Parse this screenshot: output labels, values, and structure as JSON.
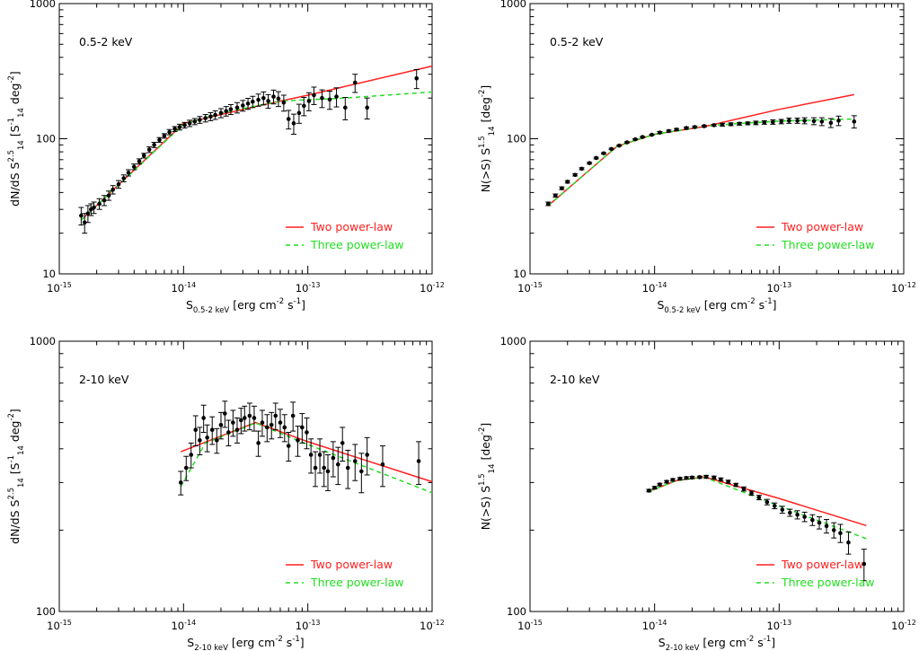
{
  "colors": {
    "two_power_law": "#ff2020",
    "three_power_law": "#22dd22",
    "points": "#000000"
  },
  "legend": {
    "two": "Two power-law",
    "three": "Three power-law"
  },
  "chart_data": [
    {
      "type": "scatter",
      "panel_label": "0.5-2 keV",
      "xlabel": {
        "main": "S",
        "sub": "0.5-2 keV",
        "rest": " [erg cm",
        "exp1": "-2",
        "mid": " s",
        "exp2": "-1",
        "end": "]"
      },
      "ylabel": {
        "main": "dN/dS S",
        "sup": "2.5",
        "sub": "14",
        "rest": " [S",
        "sub2": "14",
        "sup2": "-1",
        "mid": " deg",
        "exp": "-2",
        "end": "]"
      },
      "xscale": "log",
      "yscale": "log",
      "xlim": [
        1e-15,
        1e-12
      ],
      "ylim": [
        10,
        1000
      ],
      "x_ticks": [
        "10^-15",
        "10^-14",
        "10^-13",
        "10^-12"
      ],
      "y_ticks": [
        "10",
        "100",
        "1000"
      ],
      "legend_position": "bottom-right",
      "points": [
        [
          1.5e-15,
          27,
          4
        ],
        [
          1.6e-15,
          24,
          4
        ],
        [
          1.7e-15,
          28,
          4
        ],
        [
          1.8e-15,
          30,
          3
        ],
        [
          1.9e-15,
          31,
          3
        ],
        [
          2.1e-15,
          33,
          3
        ],
        [
          2.3e-15,
          35,
          3
        ],
        [
          2.5e-15,
          38,
          3
        ],
        [
          2.7e-15,
          42,
          3
        ],
        [
          3e-15,
          46,
          3
        ],
        [
          3.3e-15,
          51,
          3
        ],
        [
          3.6e-15,
          56,
          3
        ],
        [
          4e-15,
          62,
          3
        ],
        [
          4.4e-15,
          68,
          3
        ],
        [
          4.8e-15,
          75,
          3
        ],
        [
          5.3e-15,
          83,
          4
        ],
        [
          5.8e-15,
          90,
          4
        ],
        [
          6.4e-15,
          98,
          4
        ],
        [
          7e-15,
          105,
          4
        ],
        [
          7.7e-15,
          112,
          5
        ],
        [
          8.5e-15,
          118,
          5
        ],
        [
          9.3e-15,
          122,
          6
        ],
        [
          1.02e-14,
          126,
          6
        ],
        [
          1.12e-14,
          130,
          7
        ],
        [
          1.23e-14,
          134,
          7
        ],
        [
          1.35e-14,
          138,
          8
        ],
        [
          1.5e-14,
          142,
          9
        ],
        [
          1.65e-14,
          146,
          10
        ],
        [
          1.8e-14,
          150,
          11
        ],
        [
          2e-14,
          155,
          12
        ],
        [
          2.2e-14,
          160,
          13
        ],
        [
          2.4e-14,
          165,
          14
        ],
        [
          2.7e-14,
          170,
          15
        ],
        [
          3e-14,
          176,
          16
        ],
        [
          3.3e-14,
          182,
          17
        ],
        [
          3.6e-14,
          188,
          18
        ],
        [
          4e-14,
          194,
          20
        ],
        [
          4.4e-14,
          200,
          22
        ],
        [
          4.8e-14,
          190,
          22
        ],
        [
          5.3e-14,
          205,
          24
        ],
        [
          5.8e-14,
          198,
          25
        ],
        [
          6.4e-14,
          185,
          25
        ],
        [
          7e-14,
          140,
          22
        ],
        [
          7.7e-14,
          130,
          22
        ],
        [
          8.5e-14,
          155,
          25
        ],
        [
          9.3e-14,
          175,
          27
        ],
        [
          1.02e-13,
          190,
          29
        ],
        [
          1.12e-13,
          210,
          31
        ],
        [
          1.3e-13,
          200,
          30
        ],
        [
          1.5e-13,
          195,
          30
        ],
        [
          1.7e-13,
          205,
          33
        ],
        [
          2e-13,
          170,
          32
        ],
        [
          2.4e-13,
          260,
          40
        ],
        [
          3e-13,
          170,
          30
        ],
        [
          7.5e-13,
          280,
          45
        ]
      ],
      "two_power_law": [
        [
          1.5e-15,
          25
        ],
        [
          1e-14,
          130
        ],
        [
          4e-14,
          175
        ],
        [
          1e-13,
          210
        ],
        [
          1e-12,
          345
        ]
      ],
      "three_power_law": [
        [
          1.5e-15,
          25
        ],
        [
          1e-14,
          128
        ],
        [
          2e-14,
          155
        ],
        [
          6e-14,
          190
        ],
        [
          2e-13,
          200
        ],
        [
          1e-12,
          222
        ]
      ]
    },
    {
      "type": "scatter",
      "panel_label": "0.5-2 keV",
      "xlabel": {
        "main": "S",
        "sub": "0.5-2 keV",
        "rest": " [erg cm",
        "exp1": "-2",
        "mid": " s",
        "exp2": "-1",
        "end": "]"
      },
      "ylabel": {
        "main": "N(>S) S",
        "sup": "1.5",
        "sub": "14",
        "rest": " [deg",
        "exp": "-2",
        "end": "]"
      },
      "xscale": "log",
      "yscale": "log",
      "xlim": [
        1e-15,
        1e-12
      ],
      "ylim": [
        10,
        1000
      ],
      "x_ticks": [
        "10^-15",
        "10^-14",
        "10^-13",
        "10^-12"
      ],
      "y_ticks": [
        "10",
        "100",
        "1000"
      ],
      "legend_position": "bottom-right",
      "points": [
        [
          1.4e-15,
          33,
          1
        ],
        [
          1.6e-15,
          38,
          1
        ],
        [
          1.8e-15,
          43,
          1
        ],
        [
          2e-15,
          48,
          1
        ],
        [
          2.3e-15,
          54,
          1
        ],
        [
          2.6e-15,
          60,
          1
        ],
        [
          3e-15,
          66,
          1
        ],
        [
          3.4e-15,
          72,
          1
        ],
        [
          3.9e-15,
          78,
          1
        ],
        [
          4.5e-15,
          84,
          1
        ],
        [
          5.2e-15,
          89,
          1
        ],
        [
          6e-15,
          94,
          1
        ],
        [
          7e-15,
          99,
          1
        ],
        [
          8e-15,
          103,
          1
        ],
        [
          9.5e-15,
          107,
          1
        ],
        [
          1.1e-14,
          111,
          2
        ],
        [
          1.3e-14,
          114,
          2
        ],
        [
          1.5e-14,
          117,
          2
        ],
        [
          1.8e-14,
          120,
          2
        ],
        [
          2.1e-14,
          122,
          2
        ],
        [
          2.5e-14,
          124,
          2
        ],
        [
          3e-14,
          126,
          2
        ],
        [
          3.5e-14,
          127,
          3
        ],
        [
          4.1e-14,
          128,
          3
        ],
        [
          4.8e-14,
          129,
          3
        ],
        [
          5.6e-14,
          130,
          3
        ],
        [
          6.5e-14,
          131,
          4
        ],
        [
          7.6e-14,
          132,
          4
        ],
        [
          8.9e-14,
          133,
          5
        ],
        [
          1.04e-13,
          134,
          5
        ],
        [
          1.2e-13,
          136,
          6
        ],
        [
          1.4e-13,
          136,
          6
        ],
        [
          1.6e-13,
          136,
          7
        ],
        [
          1.9e-13,
          135,
          8
        ],
        [
          2.2e-13,
          134,
          9
        ],
        [
          2.6e-13,
          131,
          10
        ],
        [
          3e-13,
          136,
          11
        ],
        [
          4e-13,
          134,
          14
        ]
      ],
      "two_power_law": [
        [
          1.4e-15,
          32
        ],
        [
          5e-15,
          88
        ],
        [
          1e-14,
          108
        ],
        [
          2.5e-14,
          123
        ],
        [
          1e-13,
          165
        ],
        [
          4e-13,
          212
        ]
      ],
      "three_power_law": [
        [
          1.4e-15,
          32
        ],
        [
          5e-15,
          88
        ],
        [
          1e-14,
          108
        ],
        [
          3e-14,
          126
        ],
        [
          1e-13,
          135
        ],
        [
          4e-13,
          140
        ]
      ]
    },
    {
      "type": "scatter",
      "panel_label": "2-10 keV",
      "xlabel": {
        "main": "S",
        "sub": "2-10 keV",
        "rest": " [erg cm",
        "exp1": "-2",
        "mid": " s",
        "exp2": "-1",
        "end": "]"
      },
      "ylabel": {
        "main": "dN/dS S",
        "sup": "2.5",
        "sub": "14",
        "rest": " [S",
        "sub2": "14",
        "sup2": "-1",
        "mid": " deg",
        "exp": "-2",
        "end": "]"
      },
      "xscale": "log",
      "yscale": "log",
      "xlim": [
        1e-15,
        1e-12
      ],
      "ylim": [
        100,
        1000
      ],
      "x_ticks": [
        "10^-15",
        "10^-14",
        "10^-13",
        "10^-12"
      ],
      "y_ticks": [
        "100",
        "1000"
      ],
      "legend_position": "bottom-right",
      "points": [
        [
          9.5e-15,
          300,
          30
        ],
        [
          1.05e-14,
          340,
          35
        ],
        [
          1.15e-14,
          380,
          40
        ],
        [
          1.25e-14,
          470,
          60
        ],
        [
          1.35e-14,
          430,
          50
        ],
        [
          1.45e-14,
          520,
          60
        ],
        [
          1.55e-14,
          440,
          50
        ],
        [
          1.7e-14,
          470,
          55
        ],
        [
          1.85e-14,
          430,
          45
        ],
        [
          2e-14,
          490,
          55
        ],
        [
          2.15e-14,
          540,
          60
        ],
        [
          2.3e-14,
          460,
          50
        ],
        [
          2.5e-14,
          500,
          55
        ],
        [
          2.7e-14,
          470,
          50
        ],
        [
          2.9e-14,
          510,
          55
        ],
        [
          3.1e-14,
          520,
          55
        ],
        [
          3.4e-14,
          530,
          60
        ],
        [
          3.7e-14,
          520,
          55
        ],
        [
          4e-14,
          420,
          45
        ],
        [
          4.3e-14,
          500,
          55
        ],
        [
          4.7e-14,
          480,
          55
        ],
        [
          5.1e-14,
          490,
          55
        ],
        [
          5.5e-14,
          530,
          60
        ],
        [
          6e-14,
          500,
          60
        ],
        [
          6.5e-14,
          480,
          55
        ],
        [
          7e-14,
          410,
          50
        ],
        [
          7.6e-14,
          530,
          65
        ],
        [
          8.3e-14,
          430,
          55
        ],
        [
          9e-14,
          480,
          60
        ],
        [
          9.8e-14,
          460,
          60
        ],
        [
          1.06e-13,
          380,
          55
        ],
        [
          1.15e-13,
          340,
          50
        ],
        [
          1.25e-13,
          380,
          55
        ],
        [
          1.35e-13,
          340,
          50
        ],
        [
          1.45e-13,
          330,
          50
        ],
        [
          1.6e-13,
          370,
          55
        ],
        [
          1.75e-13,
          350,
          55
        ],
        [
          1.9e-13,
          420,
          60
        ],
        [
          2.1e-13,
          340,
          55
        ],
        [
          2.4e-13,
          360,
          55
        ],
        [
          2.7e-13,
          330,
          55
        ],
        [
          3e-13,
          380,
          60
        ],
        [
          4e-13,
          350,
          60
        ],
        [
          7.8e-13,
          360,
          65
        ]
      ],
      "two_power_law": [
        [
          9.5e-15,
          390
        ],
        [
          3.8e-14,
          500
        ],
        [
          1e-13,
          425
        ],
        [
          1e-12,
          302
        ]
      ],
      "three_power_law": [
        [
          9.5e-15,
          290
        ],
        [
          1.5e-14,
          420
        ],
        [
          3.8e-14,
          498
        ],
        [
          1e-13,
          415
        ],
        [
          1e-12,
          275
        ]
      ]
    },
    {
      "type": "scatter",
      "panel_label": "2-10 keV",
      "xlabel": {
        "main": "S",
        "sub": "2-10 keV",
        "rest": " [erg cm",
        "exp1": "-2",
        "mid": " s",
        "exp2": "-1",
        "end": "]"
      },
      "ylabel": {
        "main": "N(>S) S",
        "sup": "1.5",
        "sub": "14",
        "rest": " [deg",
        "exp": "-2",
        "end": "]"
      },
      "xscale": "log",
      "yscale": "log",
      "xlim": [
        1e-15,
        1e-12
      ],
      "ylim": [
        100,
        1000
      ],
      "x_ticks": [
        "10^-15",
        "10^-14",
        "10^-13",
        "10^-12"
      ],
      "y_ticks": [
        "100",
        "1000"
      ],
      "legend_position": "bottom-right",
      "points": [
        [
          9e-15,
          280,
          3
        ],
        [
          1e-14,
          287,
          3
        ],
        [
          1.1e-14,
          295,
          3
        ],
        [
          1.25e-14,
          302,
          3
        ],
        [
          1.4e-14,
          307,
          3
        ],
        [
          1.6e-14,
          310,
          3
        ],
        [
          1.8e-14,
          312,
          3
        ],
        [
          2e-14,
          313,
          3
        ],
        [
          2.3e-14,
          314,
          3
        ],
        [
          2.6e-14,
          315,
          4
        ],
        [
          3e-14,
          313,
          4
        ],
        [
          3.4e-14,
          308,
          4
        ],
        [
          3.9e-14,
          302,
          4
        ],
        [
          4.5e-14,
          294,
          4
        ],
        [
          5.2e-14,
          284,
          5
        ],
        [
          6e-14,
          274,
          5
        ],
        [
          6.9e-14,
          264,
          5
        ],
        [
          8e-14,
          254,
          6
        ],
        [
          9.2e-14,
          246,
          6
        ],
        [
          1.06e-13,
          238,
          7
        ],
        [
          1.22e-13,
          232,
          7
        ],
        [
          1.4e-13,
          228,
          8
        ],
        [
          1.6e-13,
          224,
          9
        ],
        [
          1.85e-13,
          218,
          10
        ],
        [
          2.1e-13,
          213,
          11
        ],
        [
          2.4e-13,
          207,
          12
        ],
        [
          2.75e-13,
          200,
          13
        ],
        [
          3.1e-13,
          195,
          15
        ],
        [
          3.6e-13,
          180,
          17
        ],
        [
          4.8e-13,
          150,
          20
        ]
      ],
      "two_power_law": [
        [
          9e-15,
          278
        ],
        [
          1.5e-14,
          305
        ],
        [
          2.5e-14,
          315
        ],
        [
          1e-13,
          262
        ],
        [
          5e-13,
          208
        ]
      ],
      "three_power_law": [
        [
          9e-15,
          278
        ],
        [
          1.5e-14,
          305
        ],
        [
          2.5e-14,
          314
        ],
        [
          1e-13,
          246
        ],
        [
          5e-13,
          186
        ]
      ]
    }
  ]
}
